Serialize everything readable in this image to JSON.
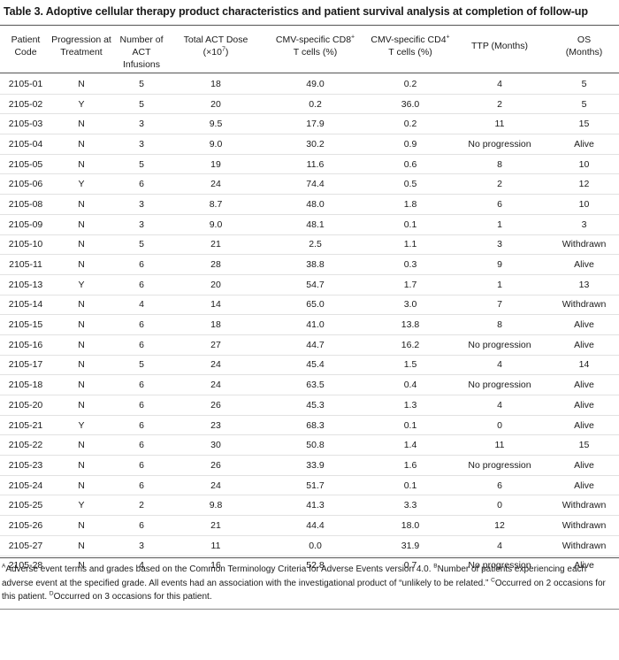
{
  "title": "Table 3. Adoptive cellular therapy product characteristics and patient survival analysis at completion of follow-up",
  "headers": [
    {
      "line1": "Patient",
      "line2": "Code",
      "sup": ""
    },
    {
      "line1": "Progression at",
      "line2": "Treatment",
      "sup": ""
    },
    {
      "line1": "Number of ACT",
      "line2": "Infusions",
      "sup": ""
    },
    {
      "line1": "Total ACT Dose",
      "line2": "(×10",
      "sup": "7",
      "line2_tail": ")"
    },
    {
      "line1": "CMV-specific CD8",
      "line1_sup": "+",
      "line2": "T cells (%)",
      "sup": ""
    },
    {
      "line1": "CMV-specific CD4",
      "line1_sup": "+",
      "line2": "T cells (%)",
      "sup": ""
    },
    {
      "line1": "TTP (Months)",
      "line2": "",
      "sup": ""
    },
    {
      "line1": "OS",
      "line2": "(Months)",
      "sup": ""
    }
  ],
  "rows": [
    [
      "2105-01",
      "N",
      "5",
      "18",
      "49.0",
      "0.2",
      "4",
      "5"
    ],
    [
      "2105-02",
      "Y",
      "5",
      "20",
      "0.2",
      "36.0",
      "2",
      "5"
    ],
    [
      "2105-03",
      "N",
      "3",
      "9.5",
      "17.9",
      "0.2",
      "11",
      "15"
    ],
    [
      "2105-04",
      "N",
      "3",
      "9.0",
      "30.2",
      "0.9",
      "No progression",
      "Alive"
    ],
    [
      "2105-05",
      "N",
      "5",
      "19",
      "11.6",
      "0.6",
      "8",
      "10"
    ],
    [
      "2105-06",
      "Y",
      "6",
      "24",
      "74.4",
      "0.5",
      "2",
      "12"
    ],
    [
      "2105-08",
      "N",
      "3",
      "8.7",
      "48.0",
      "1.8",
      "6",
      "10"
    ],
    [
      "2105-09",
      "N",
      "3",
      "9.0",
      "48.1",
      "0.1",
      "1",
      "3"
    ],
    [
      "2105-10",
      "N",
      "5",
      "21",
      "2.5",
      "1.1",
      "3",
      "Withdrawn"
    ],
    [
      "2105-11",
      "N",
      "6",
      "28",
      "38.8",
      "0.3",
      "9",
      "Alive"
    ],
    [
      "2105-13",
      "Y",
      "6",
      "20",
      "54.7",
      "1.7",
      "1",
      "13"
    ],
    [
      "2105-14",
      "N",
      "4",
      "14",
      "65.0",
      "3.0",
      "7",
      "Withdrawn"
    ],
    [
      "2105-15",
      "N",
      "6",
      "18",
      "41.0",
      "13.8",
      "8",
      "Alive"
    ],
    [
      "2105-16",
      "N",
      "6",
      "27",
      "44.7",
      "16.2",
      "No progression",
      "Alive"
    ],
    [
      "2105-17",
      "N",
      "5",
      "24",
      "45.4",
      "1.5",
      "4",
      "14"
    ],
    [
      "2105-18",
      "N",
      "6",
      "24",
      "63.5",
      "0.4",
      "No progression",
      "Alive"
    ],
    [
      "2105-20",
      "N",
      "6",
      "26",
      "45.3",
      "1.3",
      "4",
      "Alive"
    ],
    [
      "2105-21",
      "Y",
      "6",
      "23",
      "68.3",
      "0.1",
      "0",
      "Alive"
    ],
    [
      "2105-22",
      "N",
      "6",
      "30",
      "50.8",
      "1.4",
      "11",
      "15"
    ],
    [
      "2105-23",
      "N",
      "6",
      "26",
      "33.9",
      "1.6",
      "No progression",
      "Alive"
    ],
    [
      "2105-24",
      "N",
      "6",
      "24",
      "51.7",
      "0.1",
      "6",
      "Alive"
    ],
    [
      "2105-25",
      "Y",
      "2",
      "9.8",
      "41.3",
      "3.3",
      "0",
      "Withdrawn"
    ],
    [
      "2105-26",
      "N",
      "6",
      "21",
      "44.4",
      "18.0",
      "12",
      "Withdrawn"
    ],
    [
      "2105-27",
      "N",
      "3",
      "11",
      "0.0",
      "31.9",
      "4",
      "Withdrawn"
    ],
    [
      "2105-28",
      "N",
      "4",
      "16",
      "52.8",
      "0.7",
      "No progression",
      "Alive"
    ]
  ],
  "footnotes": [
    {
      "mark": "A",
      "text": "Adverse event terms and grades based on the Common Terminology Criteria for Adverse Events version 4.0. "
    },
    {
      "mark": "B",
      "text": "Number of patients experiencing each adverse event at the specified grade. All events had an association with the investigational product of “unlikely to be related.” "
    },
    {
      "mark": "C",
      "text": "Occurred on 2 occasions for this patient. "
    },
    {
      "mark": "D",
      "text": "Occurred on 3 occasions for this patient."
    }
  ]
}
